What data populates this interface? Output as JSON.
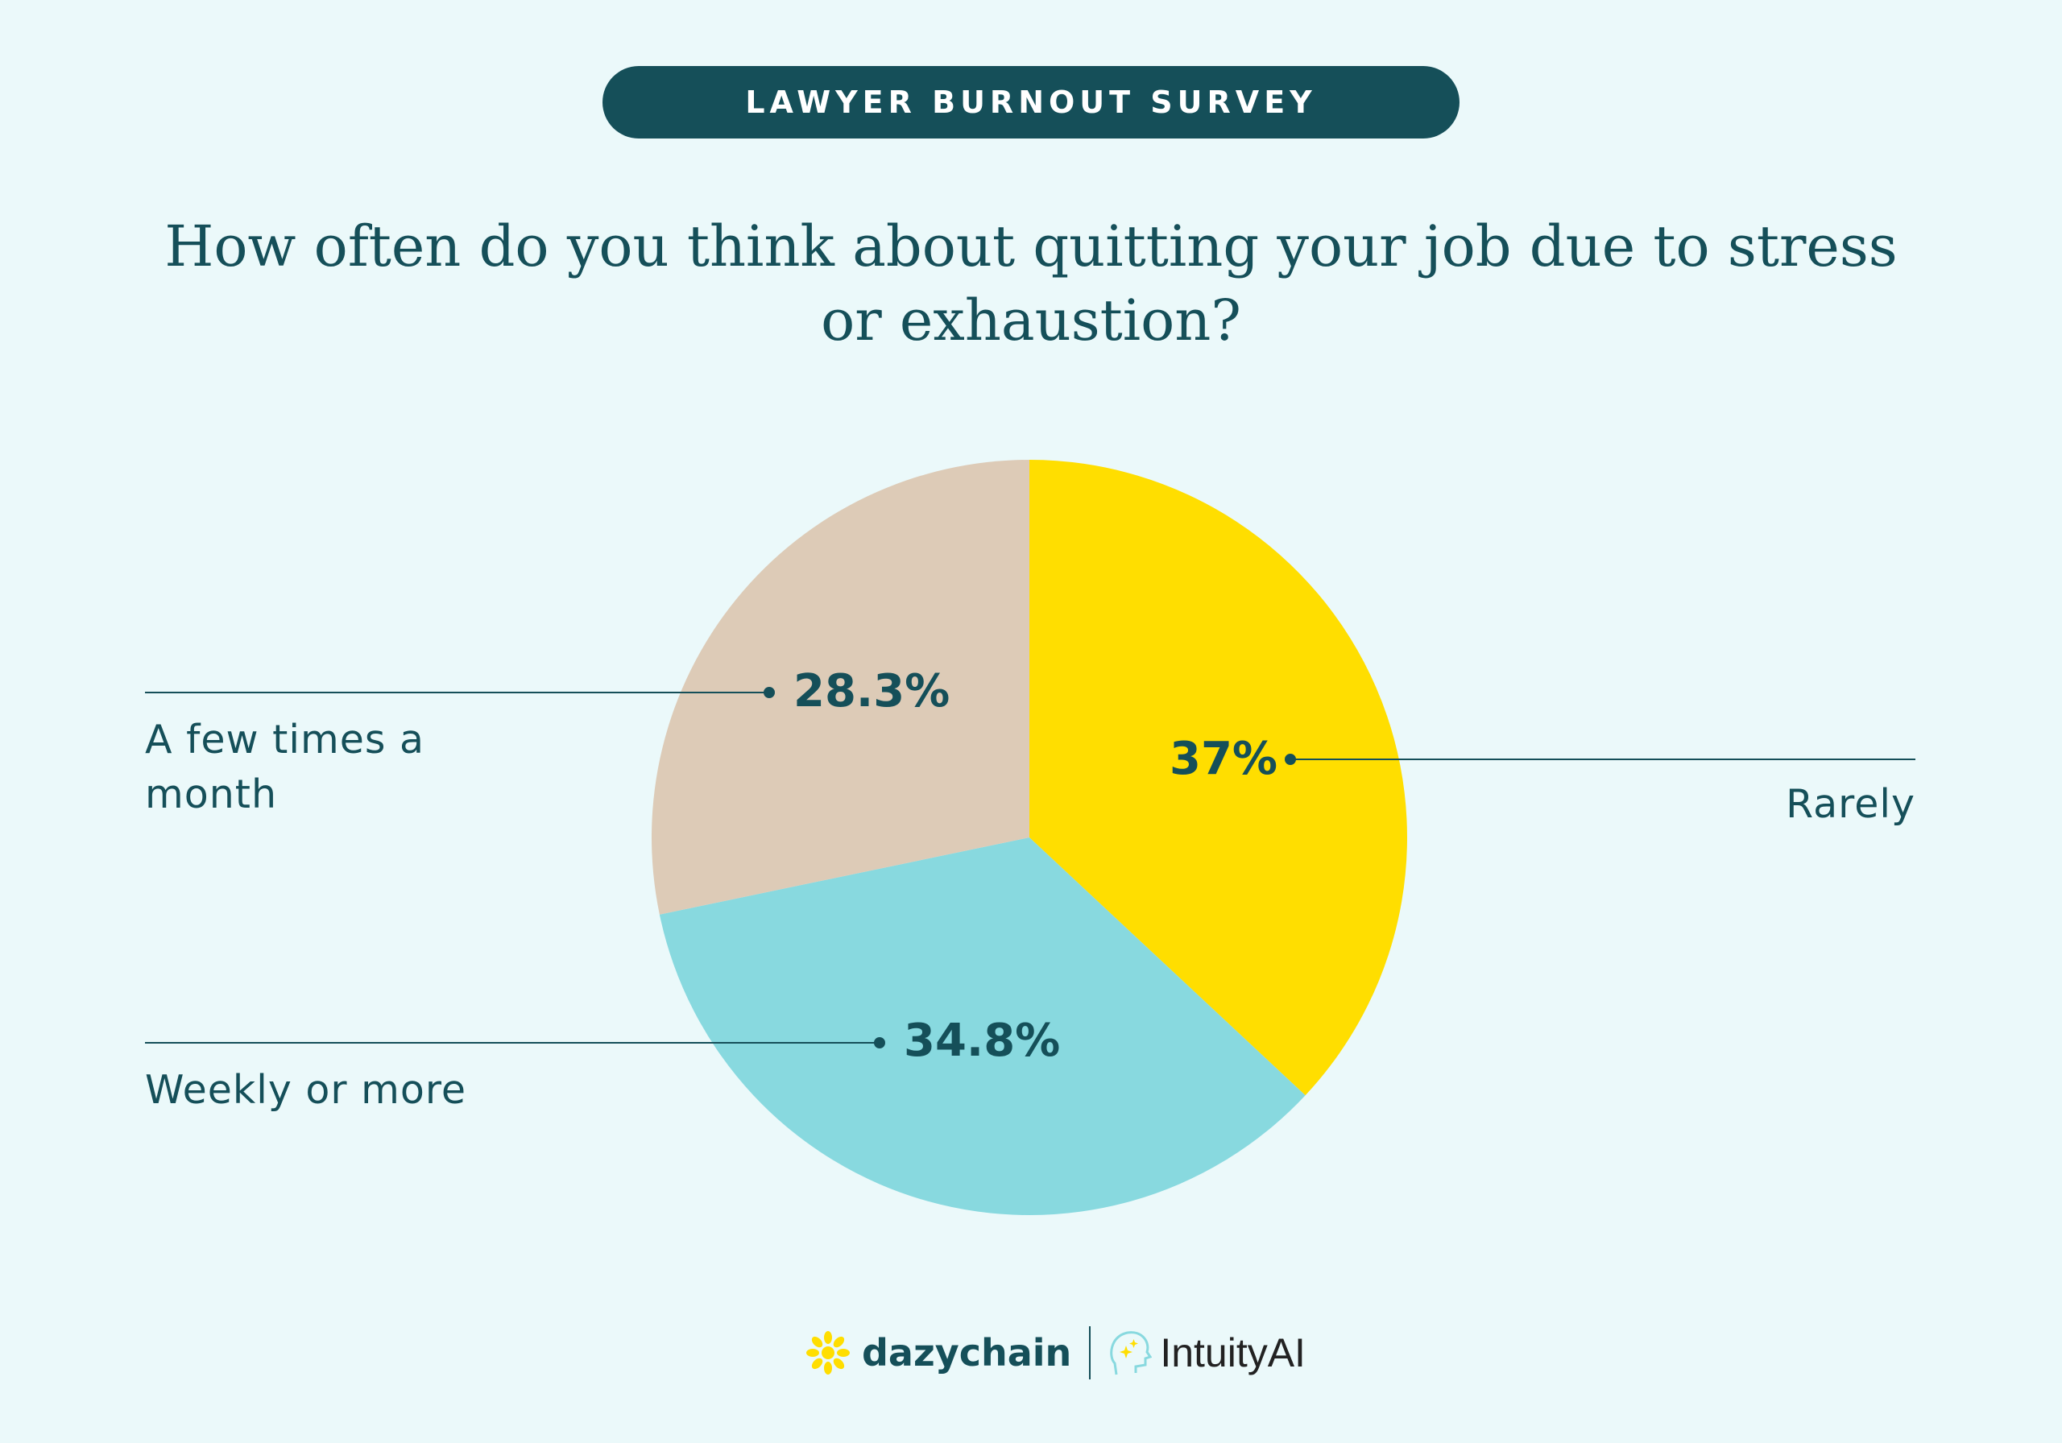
{
  "header": {
    "badge": "LAWYER BURNOUT SURVEY"
  },
  "chart_data": {
    "type": "pie",
    "title": "How often do you think about quitting your job due to stress or exhaustion?",
    "slices": [
      {
        "label": "Rarely",
        "value": 37,
        "display": "37%",
        "color": "#ffde00"
      },
      {
        "label": "Weekly or more",
        "value": 34.8,
        "display": "34.8%",
        "color": "#88d9df"
      },
      {
        "label": "A few times a month",
        "value": 28.3,
        "display": "28.3%",
        "color": "#ddcbb7"
      }
    ],
    "start": "top",
    "direction": "clockwise"
  },
  "footer": {
    "logo1": "dazychain",
    "logo2": "IntuityAI"
  }
}
